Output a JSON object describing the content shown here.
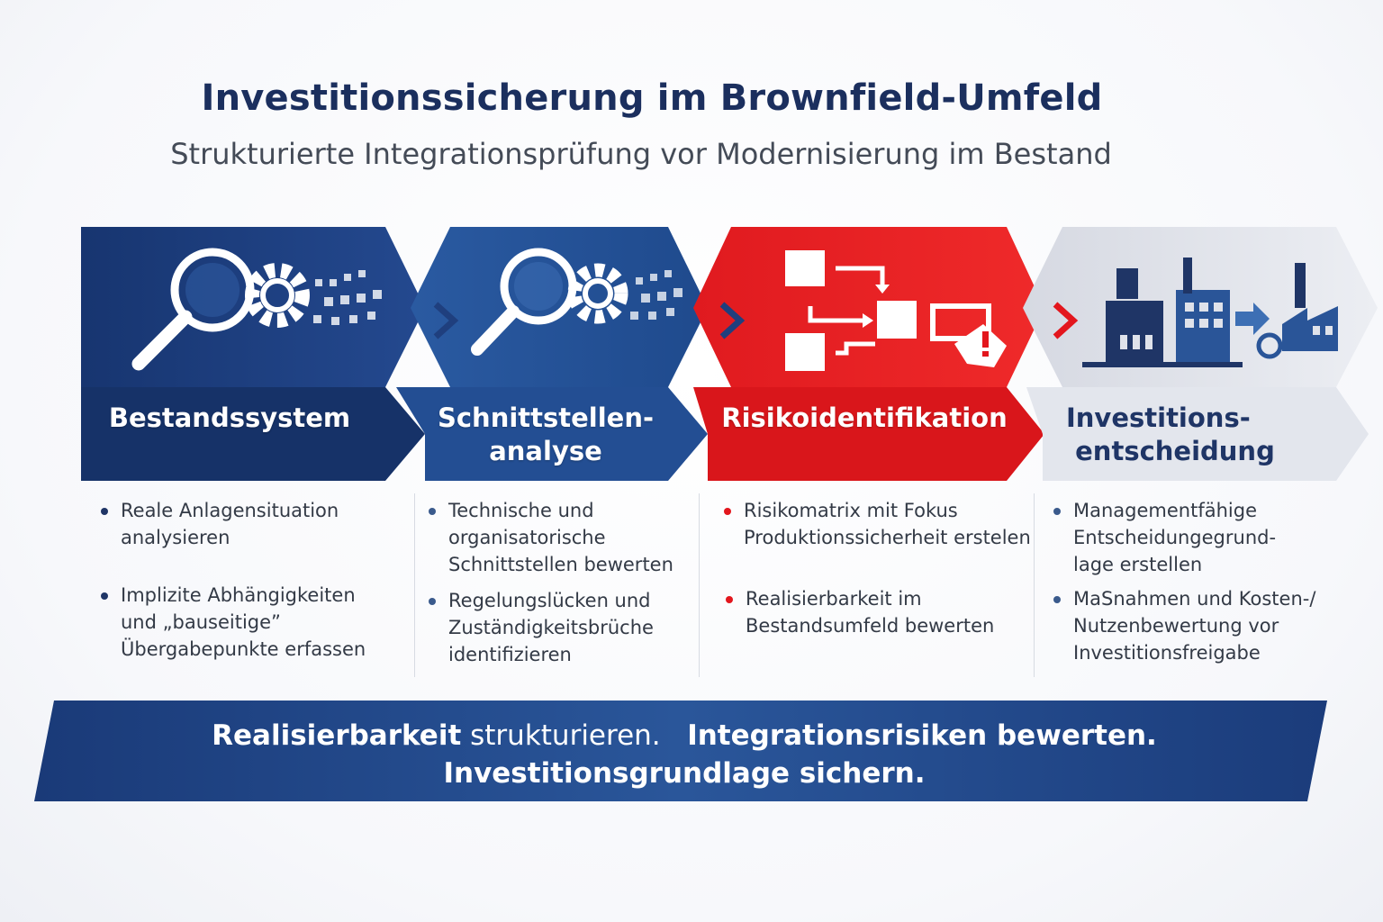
{
  "header": {
    "title": "Investitionssicherung im Brownfield-Umfeld",
    "subtitle": "Strukturierte Integrationsprüfung vor Modernisierung im Bestand"
  },
  "steps": [
    {
      "label_line1": "Bestandssystem",
      "label_line2": "",
      "color": "#1c3d7c",
      "icon": "magnifier-gear-icon",
      "bullets": [
        [
          "Reale Anlagensituation",
          "analysieren"
        ],
        [
          "Implizite Abhängigkeiten",
          "und „bauseitige”",
          "Übergabepunkte erfassen"
        ]
      ]
    },
    {
      "label_line1": "Schnittstellen-",
      "label_line2": "analyse",
      "color": "#2a5598",
      "icon": "magnifier-gear-icon",
      "bullets": [
        [
          "Technische und",
          "organisatorische",
          "Schnittstellen bewerten"
        ],
        [
          "Regelungslücken und",
          "Zuständigkeitsbrüche",
          "identifizieren"
        ]
      ]
    },
    {
      "label_line1": "Risikoidentifikation",
      "label_line2": "",
      "color": "#e3161d",
      "icon": "process-flow-warning-icon",
      "bullets": [
        [
          "Risikomatrix mit Fokus",
          "Produktionssicherheit erstelen"
        ],
        [
          "Realisierbarkeit im",
          "Bestandsumfeld bewerten"
        ]
      ]
    },
    {
      "label_line1": "Investitions-",
      "label_line2": "entscheidung",
      "color": "#dfe2ea",
      "icon": "factory-arrow-icon",
      "bullets": [
        [
          "Managementfähige",
          "Entscheidungegrund-",
          "lage erstellen"
        ],
        [
          "MaSnahmen und Kosten-/",
          "Nutzenbewertung vor",
          "Investitionsfreigabe"
        ]
      ]
    }
  ],
  "bottom": {
    "part1_bold": "Realisierbarkeit",
    "part1_rest": " strukturieren.",
    "part2": "Integrationsrisiken bewerten.",
    "part3": "Investitionsgrundlage sichern.",
    "color": "#1f3f7e"
  }
}
